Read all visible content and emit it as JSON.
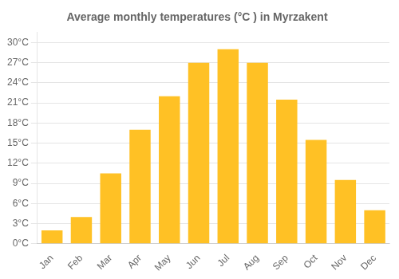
{
  "chart_data": {
    "type": "bar",
    "title": "Average monthly temperatures (°C ) in Myrzakent",
    "categories": [
      "Jan",
      "Feb",
      "Mar",
      "Apr",
      "May",
      "Jun",
      "Jul",
      "Aug",
      "Sep",
      "Oct",
      "Nov",
      "Dec"
    ],
    "values": [
      2,
      4,
      10.5,
      17,
      22,
      27,
      29,
      27,
      21.5,
      15.5,
      9.5,
      5
    ],
    "color": "#FFC125",
    "ylim": [
      0,
      31.5
    ],
    "yticks": [
      {
        "value": 0,
        "label": "0°C"
      },
      {
        "value": 3,
        "label": "3°C"
      },
      {
        "value": 6,
        "label": "6°C"
      },
      {
        "value": 9,
        "label": "9°C"
      },
      {
        "value": 12,
        "label": "12°C"
      },
      {
        "value": 15,
        "label": "15°C"
      },
      {
        "value": 18,
        "label": "18°C"
      },
      {
        "value": 21,
        "label": "21°C"
      },
      {
        "value": 24,
        "label": "24°C"
      },
      {
        "value": 27,
        "label": "27°C"
      },
      {
        "value": 30,
        "label": "30°C"
      }
    ],
    "grid": true
  }
}
